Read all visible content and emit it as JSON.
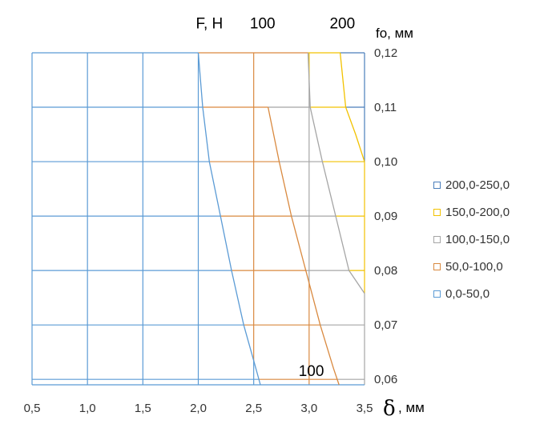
{
  "chart_data": {
    "type": "contour",
    "title": "",
    "x_axis": {
      "label": "δ , мм",
      "label_symbol": "δ",
      "label_unit": ", мм",
      "ticks": [
        "0,5",
        "1,0",
        "1,5",
        "2,0",
        "2,5",
        "3,0",
        "3,5"
      ],
      "tick_values": [
        0.5,
        1.0,
        1.5,
        2.0,
        2.5,
        3.0,
        3.5
      ],
      "range": [
        0.5,
        3.5
      ]
    },
    "y_axis": {
      "label": "fo, мм",
      "position": "right",
      "ticks": [
        "0,06",
        "0,07",
        "0,08",
        "0,09",
        "0,10",
        "0,11",
        "0,12"
      ],
      "tick_values": [
        0.06,
        0.07,
        0.08,
        0.09,
        0.1,
        0.11,
        0.12
      ],
      "range": [
        0.059,
        0.12
      ]
    },
    "grid": true,
    "legend_position": "right",
    "legend": [
      {
        "label": "200,0-250,0",
        "color": "#4a7ebb"
      },
      {
        "label": "150,0-200,0",
        "color": "#f2c200"
      },
      {
        "label": "100,0-150,0",
        "color": "#a5a5a5"
      },
      {
        "label": "50,0-100,0",
        "color": "#d9893f"
      },
      {
        "label": "0,0-50,0",
        "color": "#5b9bd5"
      }
    ],
    "annotations": [
      {
        "text": "F, Н",
        "x": 2.1,
        "y": 0.1245
      },
      {
        "text": "100",
        "x": 2.58,
        "y": 0.1245
      },
      {
        "text": "200",
        "x": 3.3,
        "y": 0.1245
      },
      {
        "text": "100",
        "x": 3.02,
        "y": 0.0606
      }
    ],
    "contours": [
      {
        "level": 50,
        "color": "#5b9bd5",
        "points": [
          [
            2.0,
            0.12
          ],
          [
            2.04,
            0.11
          ],
          [
            2.1,
            0.1
          ],
          [
            2.2,
            0.09
          ],
          [
            2.3,
            0.08
          ],
          [
            2.41,
            0.07
          ],
          [
            2.52,
            0.062
          ],
          [
            2.56,
            0.059
          ]
        ]
      },
      {
        "level": 100,
        "color": "#d9893f",
        "points": [
          [
            2.63,
            0.11
          ],
          [
            2.73,
            0.1
          ],
          [
            2.84,
            0.09
          ],
          [
            2.97,
            0.08
          ],
          [
            3.1,
            0.07
          ],
          [
            3.22,
            0.062
          ],
          [
            3.27,
            0.059
          ]
        ]
      },
      {
        "level": 150,
        "color": "#a5a5a5",
        "points": [
          [
            2.99,
            0.12
          ],
          [
            3.01,
            0.11
          ],
          [
            3.12,
            0.1
          ],
          [
            3.24,
            0.09
          ],
          [
            3.36,
            0.08
          ],
          [
            3.5,
            0.0758
          ]
        ]
      },
      {
        "level": 200,
        "color": "#f2c200",
        "points": [
          [
            3.28,
            0.12
          ],
          [
            3.33,
            0.11
          ],
          [
            3.42,
            0.105
          ],
          [
            3.5,
            0.1
          ]
        ]
      }
    ],
    "color_bands": [
      {
        "range": "0,0-50,0",
        "color": "#5b9bd5",
        "area": "left of 50 contour"
      },
      {
        "range": "50,0-100,0",
        "color": "#d9893f",
        "area": "between 50 and 100 contours"
      },
      {
        "range": "100,0-150,0",
        "color": "#a5a5a5",
        "area": "between 100 and 150 contours"
      },
      {
        "range": "150,0-200,0",
        "color": "#f2c200",
        "area": "between 150 and 200 contours"
      },
      {
        "range": "200,0-250,0",
        "color": "#4a7ebb",
        "area": "right of 200 contour"
      }
    ]
  }
}
